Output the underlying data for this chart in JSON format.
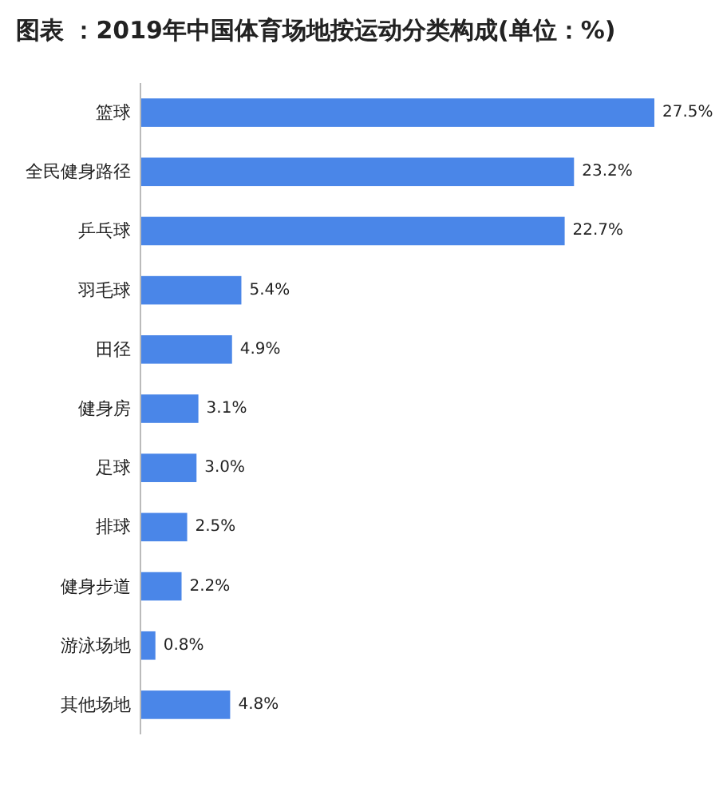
{
  "chart_data": {
    "type": "bar",
    "orientation": "horizontal",
    "title": "图表 ：2019年中国体育场地按运动分类构成(单位：%)",
    "categories": [
      "篮球",
      "全民健身路径",
      "乒乓球",
      "羽毛球",
      "田径",
      "健身房",
      "足球",
      "排球",
      "健身步道",
      "游泳场地",
      "其他场地"
    ],
    "values": [
      27.5,
      23.2,
      22.7,
      5.4,
      4.9,
      3.1,
      3.0,
      2.5,
      2.2,
      0.8,
      4.8
    ],
    "value_labels": [
      "27.5%",
      "23.2%",
      "22.7%",
      "5.4%",
      "4.9%",
      "3.1%",
      "3.0%",
      "2.5%",
      "2.2%",
      "0.8%",
      "4.8%"
    ],
    "color": "#4a86e8"
  }
}
